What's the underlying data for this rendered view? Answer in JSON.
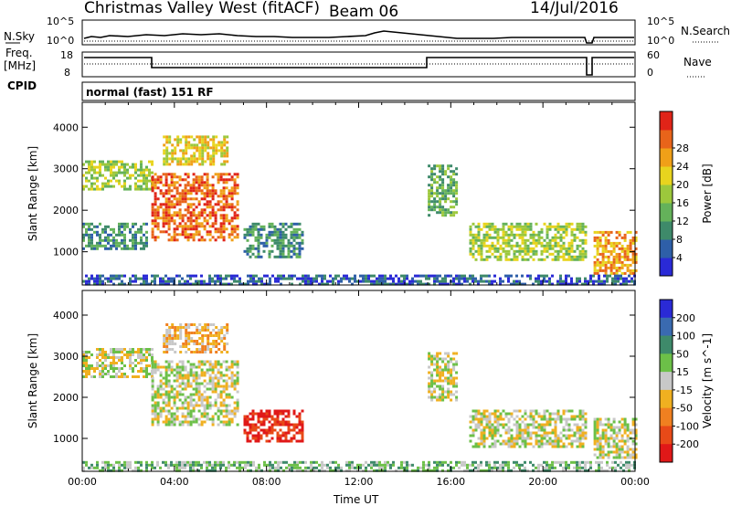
{
  "header": {
    "title": "Christmas Valley West (fitACF)",
    "beam": "Beam 06",
    "date": "14/Jul/2016"
  },
  "left_labels": {
    "nsky": "N.Sky",
    "freq_line1": "Freq.",
    "freq_line2": "[MHz]",
    "cpid": "CPID"
  },
  "right_labels": {
    "nsearch": "N.Search",
    "nave": "Nave"
  },
  "axis_ticks": {
    "noise_top": "10^5",
    "noise_bottom": "10^0",
    "freq_top": "18",
    "freq_bottom": "8",
    "nave_top": "60",
    "nave_bottom": "0"
  },
  "cpid_text": "normal (fast) 151 RF",
  "chart_data": [
    {
      "type": "heatmap",
      "name": "power",
      "ylabel": "Slant Range [km]",
      "ylim": [
        200,
        4600
      ],
      "yticks": [
        "1000",
        "2000",
        "3000",
        "4000"
      ],
      "xlim_hours": [
        0,
        24
      ],
      "colorbar": {
        "label": "Power [dB]",
        "ticks": [
          "4",
          "8",
          "12",
          "16",
          "20",
          "24",
          "28"
        ],
        "colors": [
          "#2a2ad6",
          "#2e5fa8",
          "#3e8a6a",
          "#64b25a",
          "#9cc83c",
          "#e8d41e",
          "#f0a018",
          "#e8641a",
          "#e02418"
        ]
      },
      "regions": [
        {
          "start_h": 0.0,
          "end_h": 3.0,
          "r_lo": 2500,
          "r_hi": 3200,
          "level": 4
        },
        {
          "start_h": 3.0,
          "end_h": 6.8,
          "r_lo": 1300,
          "r_hi": 2900,
          "level": 7
        },
        {
          "start_h": 3.5,
          "end_h": 6.3,
          "r_lo": 3100,
          "r_hi": 3800,
          "level": 5
        },
        {
          "start_h": 0.0,
          "end_h": 2.8,
          "r_lo": 1100,
          "r_hi": 1700,
          "level": 2
        },
        {
          "start_h": 7.0,
          "end_h": 9.5,
          "r_lo": 900,
          "r_hi": 1700,
          "level": 2
        },
        {
          "start_h": 15.0,
          "end_h": 16.3,
          "r_lo": 1900,
          "r_hi": 3100,
          "level": 3
        },
        {
          "start_h": 16.8,
          "end_h": 21.9,
          "r_lo": 800,
          "r_hi": 1700,
          "level": 4
        },
        {
          "start_h": 22.2,
          "end_h": 24.0,
          "r_lo": 500,
          "r_hi": 1500,
          "level": 6
        },
        {
          "start_h": 0.0,
          "end_h": 24.0,
          "r_lo": 200,
          "r_hi": 450,
          "level": 1
        }
      ]
    },
    {
      "type": "heatmap",
      "name": "velocity",
      "xlabel": "Time UT",
      "ylabel": "Slant Range [km]",
      "ylim": [
        200,
        4600
      ],
      "yticks": [
        "1000",
        "2000",
        "3000",
        "4000"
      ],
      "xticks": [
        "00:00",
        "04:00",
        "08:00",
        "12:00",
        "16:00",
        "20:00",
        "00:00"
      ],
      "xlim_hours": [
        0,
        24
      ],
      "colorbar": {
        "label": "Velocity [m s^-1]",
        "ticks": [
          "200",
          "100",
          "50",
          "15",
          "-15",
          "-50",
          "-100",
          "-200"
        ],
        "colors": [
          "#2a2ad6",
          "#3a6ab0",
          "#3e8a6a",
          "#6cc048",
          "#c8c8c8",
          "#f0b020",
          "#f08020",
          "#e84a18",
          "#e01818"
        ]
      },
      "regions": [
        {
          "start_h": 0.0,
          "end_h": 3.0,
          "r_lo": 2500,
          "r_hi": 3200,
          "level": 4
        },
        {
          "start_h": 3.0,
          "end_h": 6.8,
          "r_lo": 1300,
          "r_hi": 2900,
          "level": 4
        },
        {
          "start_h": 3.5,
          "end_h": 6.3,
          "r_lo": 3100,
          "r_hi": 3800,
          "level": 5
        },
        {
          "start_h": 7.0,
          "end_h": 9.5,
          "r_lo": 900,
          "r_hi": 1700,
          "level": 8
        },
        {
          "start_h": 15.0,
          "end_h": 16.3,
          "r_lo": 1900,
          "r_hi": 3100,
          "level": 4
        },
        {
          "start_h": 16.8,
          "end_h": 21.9,
          "r_lo": 800,
          "r_hi": 1700,
          "level": 4
        },
        {
          "start_h": 22.2,
          "end_h": 24.0,
          "r_lo": 500,
          "r_hi": 1500,
          "level": 4
        },
        {
          "start_h": 0.0,
          "end_h": 24.0,
          "r_lo": 200,
          "r_hi": 450,
          "level": 3
        }
      ]
    }
  ]
}
